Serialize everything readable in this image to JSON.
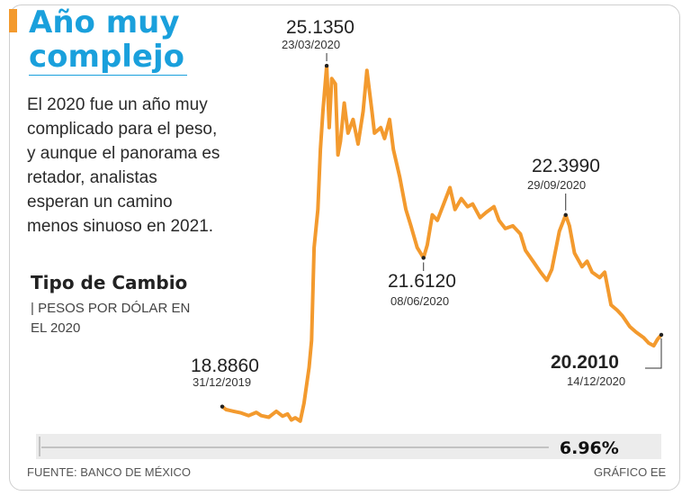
{
  "headline": {
    "title_line1": "Año muy",
    "title_line2": "complejo"
  },
  "lede": "El 2020 fue un año muy complicado para el peso, y aunque el panorama es retador, analistas esperan un camino menos sinuoso en 2021.",
  "chart_heading": {
    "title": "Tipo de Cambio",
    "subtitle": "| PESOS POR DÓLAR EN EL 2020"
  },
  "footer": {
    "source": "FUENTE: BANCO DE MÉXICO",
    "credit": "GRÁFICO EE"
  },
  "colors": {
    "line": "#F39A2E",
    "title": "#1AA0DC",
    "text": "#2a2a2a",
    "bar_bg": "#ececec"
  },
  "chart_data": {
    "type": "line",
    "title": "Tipo de Cambio",
    "ylabel": "PESOS POR DÓLAR",
    "ylim": [
      18.55,
      25.35
    ],
    "xlim": [
      "2019-12-31",
      "2020-12-14"
    ],
    "grid": false,
    "series": [
      {
        "values": [
          [
            "2019-12-31",
            18.886
          ],
          [
            "2020-01-03",
            18.83
          ],
          [
            "2020-01-09",
            18.8
          ],
          [
            "2020-01-15",
            18.77
          ],
          [
            "2020-01-21",
            18.72
          ],
          [
            "2020-01-27",
            18.78
          ],
          [
            "2020-01-31",
            18.72
          ],
          [
            "2020-02-06",
            18.69
          ],
          [
            "2020-02-12",
            18.8
          ],
          [
            "2020-02-17",
            18.71
          ],
          [
            "2020-02-21",
            18.75
          ],
          [
            "2020-02-24",
            18.64
          ],
          [
            "2020-02-27",
            18.68
          ],
          [
            "2020-03-02",
            18.62
          ],
          [
            "2020-03-05",
            18.95
          ],
          [
            "2020-03-09",
            19.6
          ],
          [
            "2020-03-11",
            20.1
          ],
          [
            "2020-03-13",
            21.8
          ],
          [
            "2020-03-16",
            22.5
          ],
          [
            "2020-03-18",
            23.6
          ],
          [
            "2020-03-20",
            24.3
          ],
          [
            "2020-03-23",
            25.135
          ],
          [
            "2020-03-25",
            24.0
          ],
          [
            "2020-03-27",
            24.9
          ],
          [
            "2020-03-30",
            24.8
          ],
          [
            "2020-04-01",
            23.5
          ],
          [
            "2020-04-03",
            23.75
          ],
          [
            "2020-04-06",
            24.45
          ],
          [
            "2020-04-09",
            23.9
          ],
          [
            "2020-04-13",
            24.15
          ],
          [
            "2020-04-17",
            23.7
          ],
          [
            "2020-04-21",
            24.3
          ],
          [
            "2020-04-24",
            25.05
          ],
          [
            "2020-04-28",
            24.3
          ],
          [
            "2020-04-30",
            23.9
          ],
          [
            "2020-05-05",
            24.0
          ],
          [
            "2020-05-08",
            23.8
          ],
          [
            "2020-05-12",
            24.15
          ],
          [
            "2020-05-15",
            23.6
          ],
          [
            "2020-05-20",
            23.1
          ],
          [
            "2020-05-25",
            22.5
          ],
          [
            "2020-05-29",
            22.2
          ],
          [
            "2020-06-03",
            21.8
          ],
          [
            "2020-06-08",
            21.612
          ],
          [
            "2020-06-11",
            21.85
          ],
          [
            "2020-06-15",
            22.4
          ],
          [
            "2020-06-19",
            22.3
          ],
          [
            "2020-06-24",
            22.6
          ],
          [
            "2020-06-29",
            22.9
          ],
          [
            "2020-07-03",
            22.5
          ],
          [
            "2020-07-08",
            22.7
          ],
          [
            "2020-07-13",
            22.55
          ],
          [
            "2020-07-17",
            22.6
          ],
          [
            "2020-07-23",
            22.35
          ],
          [
            "2020-07-28",
            22.45
          ],
          [
            "2020-08-03",
            22.55
          ],
          [
            "2020-08-07",
            22.3
          ],
          [
            "2020-08-12",
            22.15
          ],
          [
            "2020-08-18",
            22.2
          ],
          [
            "2020-08-24",
            22.05
          ],
          [
            "2020-08-28",
            21.75
          ],
          [
            "2020-09-03",
            21.55
          ],
          [
            "2020-09-09",
            21.35
          ],
          [
            "2020-09-14",
            21.2
          ],
          [
            "2020-09-18",
            21.4
          ],
          [
            "2020-09-24",
            22.1
          ],
          [
            "2020-09-29",
            22.399
          ],
          [
            "2020-10-02",
            22.2
          ],
          [
            "2020-10-06",
            21.7
          ],
          [
            "2020-10-12",
            21.45
          ],
          [
            "2020-10-16",
            21.55
          ],
          [
            "2020-10-20",
            21.35
          ],
          [
            "2020-10-26",
            21.25
          ],
          [
            "2020-10-30",
            21.35
          ],
          [
            "2020-11-04",
            20.75
          ],
          [
            "2020-11-09",
            20.65
          ],
          [
            "2020-11-13",
            20.55
          ],
          [
            "2020-11-19",
            20.35
          ],
          [
            "2020-11-24",
            20.25
          ],
          [
            "2020-11-30",
            20.15
          ],
          [
            "2020-12-04",
            20.05
          ],
          [
            "2020-12-08",
            20.0
          ],
          [
            "2020-12-11",
            20.12
          ],
          [
            "2020-12-14",
            20.201
          ]
        ]
      }
    ],
    "annotations": [
      {
        "value": "18.8860",
        "date": "31/12/2019"
      },
      {
        "value": "25.1350",
        "date": "23/03/2020"
      },
      {
        "value": "21.6120",
        "date": "08/06/2020"
      },
      {
        "value": "22.3990",
        "date": "29/09/2020"
      },
      {
        "value": "20.2010",
        "date": "14/12/2020"
      }
    ],
    "change_label": "6.96%",
    "change_pct": 6.96
  }
}
